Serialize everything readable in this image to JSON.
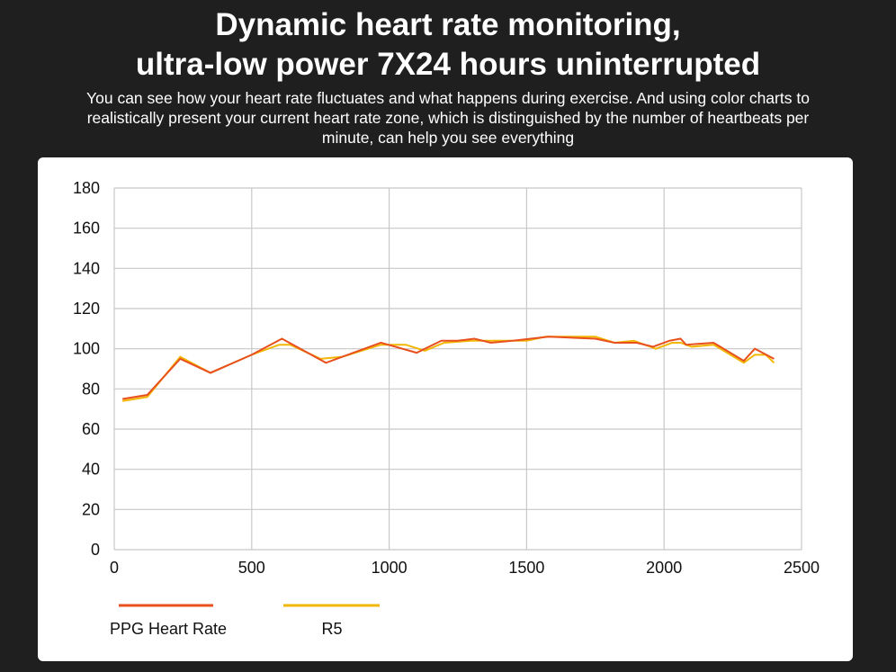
{
  "header": {
    "title_line1": "Dynamic heart rate monitoring,",
    "title_line2": "ultra-low power 7X24 hours uninterrupted",
    "subtitle": "You can see how your heart rate fluctuates and what happens during exercise. And using color charts to realistically present your current heart rate zone, which is distinguished by the number of heartbeats per minute, can help you see everything"
  },
  "chart_data": {
    "type": "line",
    "title": "",
    "xlabel": "",
    "ylabel": "",
    "xlim": [
      0,
      2500
    ],
    "ylim": [
      0,
      180
    ],
    "grid": true,
    "legend_placement": "bottom",
    "xticks": [
      0,
      500,
      1000,
      1500,
      2000,
      2500
    ],
    "yticks": [
      0,
      20,
      40,
      60,
      80,
      100,
      120,
      140,
      160,
      180
    ],
    "series": [
      {
        "name": "PPG Heart Rate",
        "color": "#e8501e",
        "points": [
          [
            30,
            75
          ],
          [
            120,
            77
          ],
          [
            240,
            95
          ],
          [
            350,
            88
          ],
          [
            500,
            97
          ],
          [
            610,
            105
          ],
          [
            770,
            93
          ],
          [
            970,
            103
          ],
          [
            1100,
            98
          ],
          [
            1190,
            104
          ],
          [
            1250,
            104
          ],
          [
            1310,
            105
          ],
          [
            1370,
            103
          ],
          [
            1450,
            104
          ],
          [
            1580,
            106
          ],
          [
            1750,
            105
          ],
          [
            1820,
            103
          ],
          [
            1900,
            103
          ],
          [
            1960,
            101
          ],
          [
            2020,
            104
          ],
          [
            2060,
            105
          ],
          [
            2080,
            102
          ],
          [
            2180,
            103
          ],
          [
            2290,
            94
          ],
          [
            2330,
            100
          ],
          [
            2400,
            95
          ]
        ]
      },
      {
        "name": "R5",
        "color": "#f2b705",
        "points": [
          [
            30,
            74
          ],
          [
            120,
            76
          ],
          [
            240,
            96
          ],
          [
            350,
            88
          ],
          [
            500,
            97
          ],
          [
            600,
            102
          ],
          [
            640,
            102
          ],
          [
            750,
            95
          ],
          [
            830,
            96
          ],
          [
            970,
            102
          ],
          [
            1060,
            102
          ],
          [
            1130,
            99
          ],
          [
            1200,
            103
          ],
          [
            1300,
            104
          ],
          [
            1500,
            104
          ],
          [
            1570,
            106
          ],
          [
            1750,
            106
          ],
          [
            1820,
            103
          ],
          [
            1890,
            104
          ],
          [
            1970,
            100
          ],
          [
            2030,
            103
          ],
          [
            2060,
            103
          ],
          [
            2100,
            101
          ],
          [
            2180,
            102
          ],
          [
            2290,
            93
          ],
          [
            2330,
            97
          ],
          [
            2370,
            97
          ],
          [
            2400,
            93
          ]
        ]
      }
    ]
  }
}
